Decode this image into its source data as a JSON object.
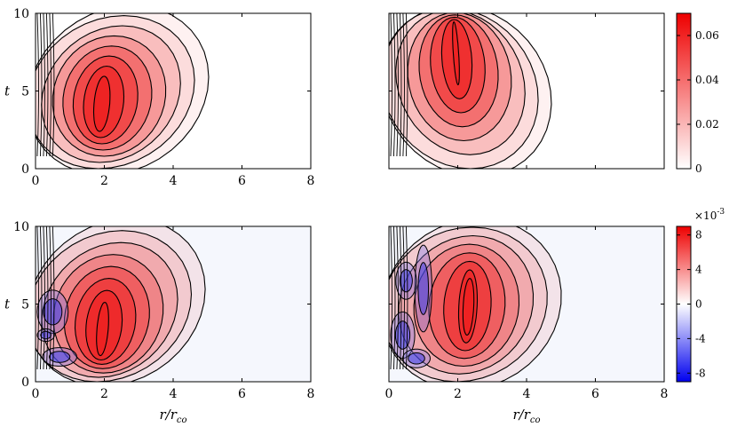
{
  "chart_data": [
    {
      "type": "heatmap",
      "panel": "top-left",
      "x_ticks": [
        "0",
        "2",
        "4",
        "6",
        "8"
      ],
      "y_ticks": [
        "0",
        "5",
        "10"
      ],
      "xlim": [
        0,
        8
      ],
      "ylim": [
        0,
        10
      ],
      "ylabel": "t",
      "xlabel": "",
      "peak": {
        "r": 2.0,
        "t": 4.0,
        "value": 0.045
      },
      "colormap": "white-red",
      "extent_r": [
        0,
        5.0
      ]
    },
    {
      "type": "heatmap",
      "panel": "top-right",
      "x_ticks": [],
      "y_ticks": [],
      "xlim": [
        0,
        8
      ],
      "ylim": [
        0,
        10
      ],
      "peak": {
        "r": 2.2,
        "t": 9.0,
        "value": 0.04
      },
      "colormap": "white-red",
      "extent_r": [
        0,
        4.7
      ],
      "colorbar": {
        "range": [
          0,
          0.07
        ],
        "ticks": [
          "0",
          "0.02",
          "0.04",
          "0.06"
        ],
        "tick_values": [
          0,
          0.02,
          0.04,
          0.06
        ]
      }
    },
    {
      "type": "heatmap",
      "panel": "bottom-left",
      "x_ticks": [
        "0",
        "2",
        "4",
        "6",
        "8"
      ],
      "y_ticks": [
        "0",
        "5",
        "10"
      ],
      "xlim": [
        0,
        8
      ],
      "ylim": [
        0,
        10
      ],
      "xlabel_var": "r",
      "xlabel_sub": "co",
      "ylabel": "t",
      "peak": {
        "r": 2.1,
        "t": 2.8,
        "value": 0.008
      },
      "colormap": "blue-white-red",
      "extent_r": [
        0,
        4.9
      ]
    },
    {
      "type": "heatmap",
      "panel": "bottom-right",
      "x_ticks": [
        "0",
        "2",
        "4",
        "6",
        "8"
      ],
      "y_ticks": [],
      "xlim": [
        0,
        8
      ],
      "ylim": [
        0,
        10
      ],
      "xlabel_var": "r",
      "xlabel_sub": "co",
      "peak": {
        "r": 2.9,
        "t": 5.0,
        "value": 0.008
      },
      "colormap": "blue-white-red",
      "extent_r": [
        0,
        5.0
      ],
      "colorbar": {
        "range": [
          -0.009,
          0.009
        ],
        "ticks": [
          "-8",
          "-4",
          "0",
          "4",
          "8"
        ],
        "tick_values": [
          -8,
          -4,
          0,
          4,
          8
        ],
        "multiplier_base": "×10",
        "multiplier_exp": "-3"
      }
    }
  ],
  "colors": {
    "red": "#ee2020",
    "blue": "#0000ee",
    "white": "#ffffff",
    "line": "#000000"
  }
}
